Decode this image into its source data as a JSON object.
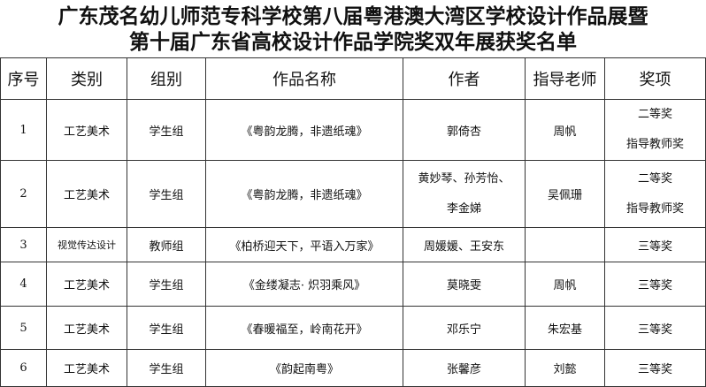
{
  "title": {
    "lines": [
      "广东茂名幼儿师范专科学校第八届粤港澳大湾区学校设计作品展暨",
      "第十届广东省高校设计作品学院奖双年展获奖名单"
    ]
  },
  "table": {
    "headers": [
      "序号",
      "类别",
      "组别",
      "作品名称",
      "作者",
      "指导老师",
      "奖项"
    ],
    "rows": [
      [
        "1",
        "工艺美术",
        "学生组",
        "《粤韵龙腾，非遗纸魂》",
        "郭倚杏",
        "周帆",
        [
          "二等奖",
          "指导教师奖"
        ]
      ],
      [
        "2",
        "工艺美术",
        "学生组",
        "《粤韵龙腾，非遗纸魂》",
        [
          "黄妙琴、孙芳怡、",
          "李金娣"
        ],
        "吴佩珊",
        [
          "二等奖",
          "指导教师奖"
        ]
      ],
      [
        "3",
        "视觉传达设计",
        "教师组",
        "《柏桥迎天下，平语入万家》",
        "周媛媛、王安东",
        null,
        "三等奖"
      ],
      [
        "4",
        "工艺美术",
        "学生组",
        "《金缕凝志· 炽羽乘风》",
        "莫晓雯",
        "周帆",
        "三等奖"
      ],
      [
        "5",
        "工艺美术",
        "学生组",
        "《春暖福至，岭南花开》",
        "邓乐宁",
        "朱宏基",
        "三等奖"
      ],
      [
        "6",
        "工艺美术",
        "学生组",
        "《韵起南粤》",
        "张馨彦",
        "刘懿",
        "三等奖"
      ]
    ]
  }
}
